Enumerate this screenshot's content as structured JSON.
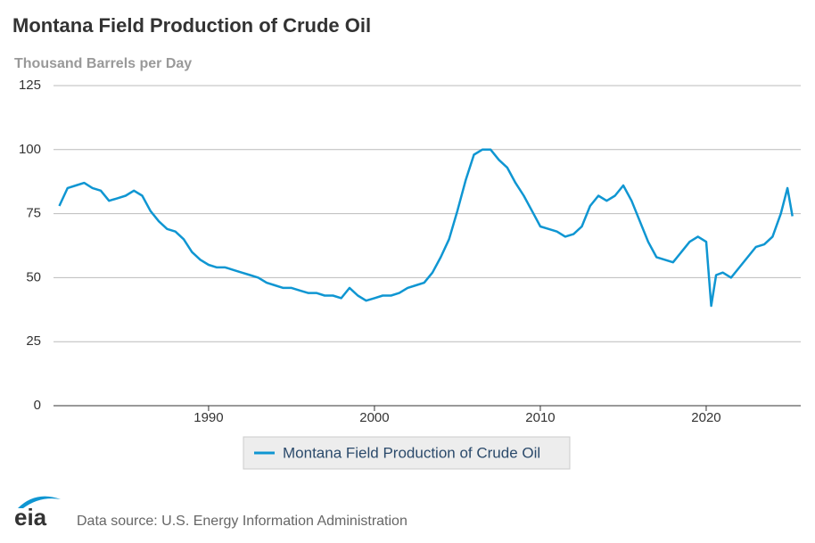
{
  "chart_data": {
    "type": "line",
    "title": "Montana Field Production of Crude Oil",
    "y_label": "Thousand Barrels per Day",
    "source": "Data source: U.S. Energy Information Administration",
    "legend": "bottom",
    "grid": true,
    "xlim": [
      1980.65,
      2025.7
    ],
    "xticks": [
      1990,
      2000,
      2010,
      2020
    ],
    "ylim": [
      0,
      125
    ],
    "yticks": [
      0,
      25,
      50,
      75,
      100,
      125
    ],
    "x": [
      1981,
      1981.5,
      1982,
      1982.5,
      1983,
      1983.5,
      1984,
      1984.5,
      1985,
      1985.5,
      1986,
      1986.5,
      1987,
      1987.5,
      1988,
      1988.5,
      1989,
      1989.5,
      1990,
      1990.5,
      1991,
      1991.5,
      1992,
      1992.5,
      1993,
      1993.5,
      1994,
      1994.5,
      1995,
      1995.5,
      1996,
      1996.5,
      1997,
      1997.5,
      1998,
      1998.5,
      1999,
      1999.5,
      2000,
      2000.5,
      2001,
      2001.5,
      2002,
      2002.5,
      2003,
      2003.5,
      2004,
      2004.5,
      2005,
      2005.5,
      2006,
      2006.5,
      2007,
      2007.5,
      2008,
      2008.5,
      2009,
      2009.5,
      2010,
      2010.5,
      2011,
      2011.5,
      2012,
      2012.5,
      2013,
      2013.5,
      2014,
      2014.5,
      2015,
      2015.5,
      2016,
      2016.5,
      2017,
      2017.5,
      2018,
      2018.5,
      2019,
      2019.5,
      2020,
      2020.3,
      2020.6,
      2021,
      2021.5,
      2022,
      2022.5,
      2023,
      2023.5,
      2024,
      2024.5,
      2024.9,
      2025.2
    ],
    "series": [
      {
        "name": "Montana Field Production of Crude Oil",
        "color": "#0f96d2",
        "values": [
          78,
          85,
          86,
          87,
          85,
          84,
          80,
          81,
          82,
          84,
          82,
          76,
          72,
          69,
          68,
          65,
          60,
          57,
          55,
          54,
          54,
          53,
          52,
          51,
          50,
          48,
          47,
          46,
          46,
          45,
          44,
          44,
          43,
          43,
          42,
          46,
          43,
          41,
          42,
          43,
          43,
          44,
          46,
          47,
          48,
          52,
          58,
          65,
          76,
          88,
          98,
          100,
          100,
          96,
          93,
          87,
          82,
          76,
          70,
          69,
          68,
          66,
          67,
          70,
          78,
          82,
          80,
          82,
          86,
          80,
          72,
          64,
          58,
          57,
          56,
          60,
          64,
          66,
          64,
          39,
          51,
          52,
          50,
          54,
          58,
          62,
          63,
          66,
          75,
          85,
          74
        ]
      }
    ]
  }
}
